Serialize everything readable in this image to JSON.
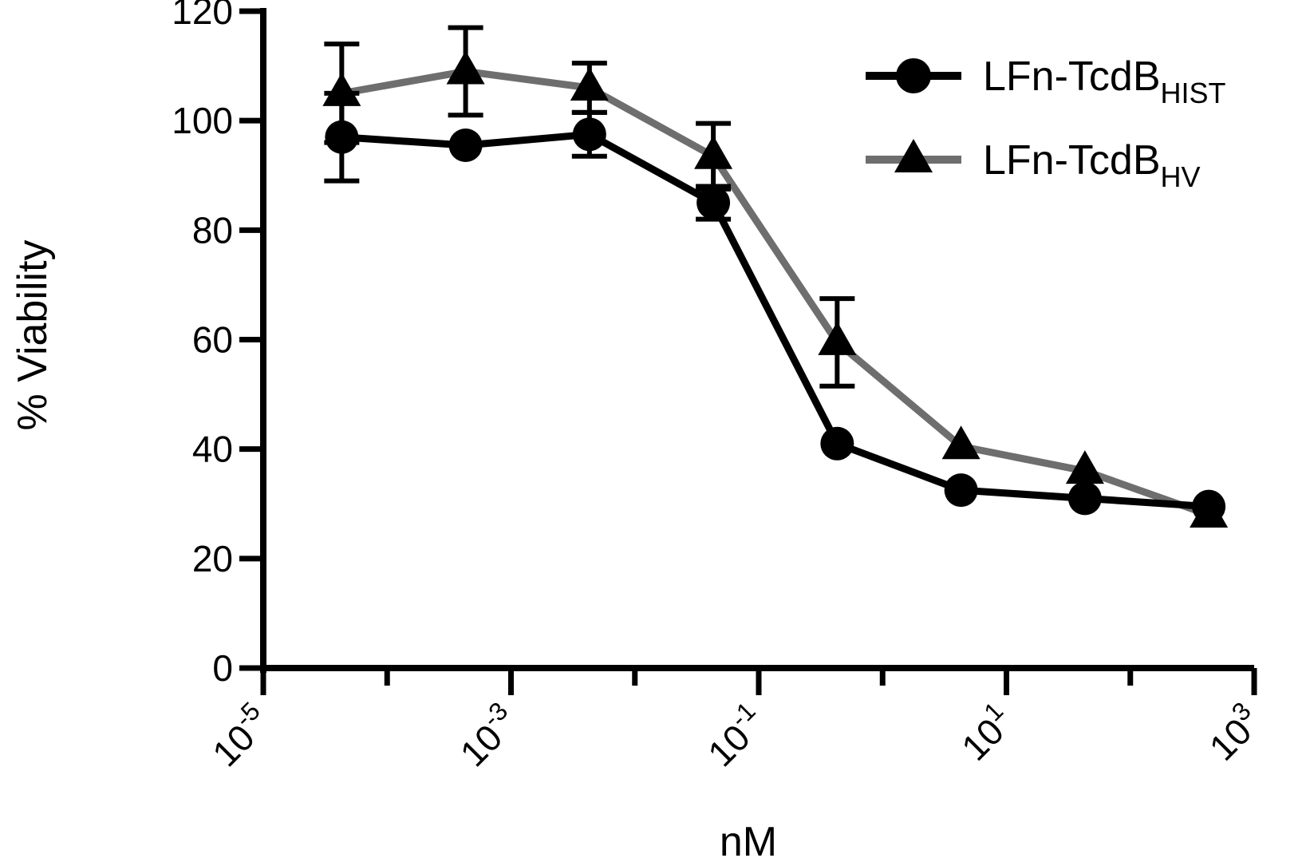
{
  "chart_data": {
    "type": "line",
    "title": "",
    "xlabel": "nM",
    "ylabel": "% Viability",
    "x_scale": "log",
    "xlim": [
      1e-05,
      1000
    ],
    "ylim": [
      0,
      120
    ],
    "x_ticks": [
      {
        "value": 1e-05,
        "base": "10",
        "exp": "-5"
      },
      {
        "value": 0.001,
        "base": "10",
        "exp": "-3"
      },
      {
        "value": 0.1,
        "base": "10",
        "exp": "-1"
      },
      {
        "value": 10,
        "base": "10",
        "exp": "1"
      },
      {
        "value": 1000,
        "base": "10",
        "exp": "3"
      }
    ],
    "y_ticks": [
      {
        "value": 0,
        "label": "0"
      },
      {
        "value": 20,
        "label": "20"
      },
      {
        "value": 40,
        "label": "40"
      },
      {
        "value": 60,
        "label": "60"
      },
      {
        "value": 80,
        "label": "80"
      },
      {
        "value": 100,
        "label": "100"
      },
      {
        "value": 120,
        "label": "120"
      }
    ],
    "grid": false,
    "legend_position": "top-right",
    "series": [
      {
        "name": "LFn-TcdBHIST",
        "legend_base": "LFn-TcdB",
        "legend_sub": "HIST",
        "marker": "circle",
        "color": "#000000",
        "points": [
          {
            "x": 4.3e-05,
            "y": 97,
            "err": 8
          },
          {
            "x": 0.00043,
            "y": 95.5,
            "err": null
          },
          {
            "x": 0.0043,
            "y": 97.5,
            "err": 4
          },
          {
            "x": 0.043,
            "y": 85,
            "err": 3
          },
          {
            "x": 0.43,
            "y": 41,
            "err": null
          },
          {
            "x": 4.3,
            "y": 32.5,
            "err": null
          },
          {
            "x": 43,
            "y": 31,
            "err": null
          },
          {
            "x": 430,
            "y": 29.5,
            "err": null
          }
        ]
      },
      {
        "name": "LFn-TcdBHV",
        "legend_base": "LFn-TcdB",
        "legend_sub": "HV",
        "marker": "triangle",
        "color": "#6e6e6e",
        "points": [
          {
            "x": 4.3e-05,
            "y": 105,
            "err": 9
          },
          {
            "x": 0.00043,
            "y": 109,
            "err": 8
          },
          {
            "x": 0.0043,
            "y": 106,
            "err": 4.5
          },
          {
            "x": 0.043,
            "y": 93.5,
            "err": 6
          },
          {
            "x": 0.43,
            "y": 59.5,
            "err": 8
          },
          {
            "x": 4.3,
            "y": 40.5,
            "err": null
          },
          {
            "x": 43,
            "y": 36,
            "err": null
          },
          {
            "x": 430,
            "y": 28,
            "err": null
          }
        ]
      }
    ]
  }
}
